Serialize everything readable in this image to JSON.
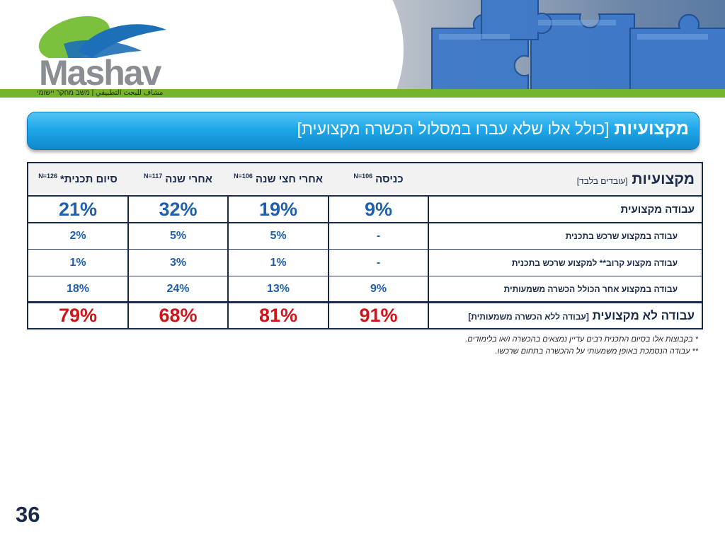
{
  "logo": {
    "word": "Mashav",
    "subtitle": "مشاف للبحث التطبيقي | משב מחקר יישומי",
    "colors": {
      "green": "#7bc13e",
      "blue": "#1d6fb8",
      "gray": "#8a8d91"
    }
  },
  "banner": {
    "title": "מקצועיות",
    "subtitle": "[כולל אלו שלא עברו במסלול הכשרה מקצועית]"
  },
  "table": {
    "header": {
      "label_main": "מקצועיות",
      "label_sub": "[עובדים בלבד]",
      "columns": [
        {
          "label": "כניסה",
          "n": "N=106"
        },
        {
          "label": "אחרי חצי שנה",
          "n": "N=106"
        },
        {
          "label": "אחרי שנה",
          "n": "N=117"
        },
        {
          "label": "סיום תכנית*",
          "n": "N=126"
        }
      ]
    },
    "rows": [
      {
        "label": "עבודה מקצועית",
        "values": [
          "9%",
          "19%",
          "32%",
          "21%"
        ]
      },
      {
        "label": "עבודה במקצוע שרכש בתכנית",
        "values": [
          "-",
          "5%",
          "5%",
          "2%"
        ]
      },
      {
        "label": "עבודה מקצוע קרוב** למקצוע שרכש בתכנית",
        "values": [
          "-",
          "1%",
          "3%",
          "1%"
        ]
      },
      {
        "label": "עבודה במקצוע אחר הכולל הכשרה משמעותית",
        "values": [
          "9%",
          "13%",
          "24%",
          "18%"
        ]
      },
      {
        "label_main": "עבודה לא מקצועית",
        "label_sub": "[עבודה ללא הכשרה משמעותית]",
        "values": [
          "91%",
          "81%",
          "68%",
          "79%"
        ]
      }
    ],
    "colors": {
      "blue": "#1f5fad",
      "red": "#d0141a",
      "border": "#1a2a4a"
    }
  },
  "footnotes": [
    "*  בקבוצות אלו בסיום התכנית רבים עדיין נמצאים בהכשרה ו/או בלימודים.",
    "** עבודה הנסמכת באופן משמעותי על ההכשרה בתחום שרכשו."
  ],
  "page_number": "36"
}
